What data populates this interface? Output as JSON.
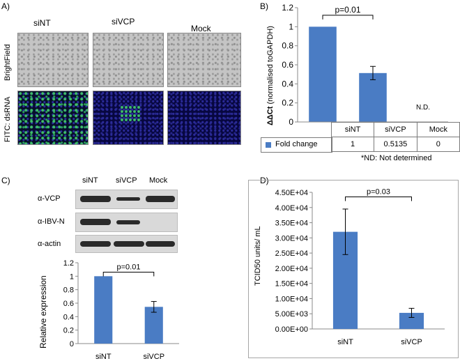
{
  "panel_a": {
    "letter": "A)",
    "columns": [
      "siNT",
      "siVCP",
      "Mock"
    ],
    "rows": [
      "BrightField",
      "FITC: dsRNA"
    ]
  },
  "panel_b": {
    "letter": "B)",
    "significance": "p=0.01",
    "nd_label": "N.D.",
    "table": {
      "headers": [
        "siNT",
        "siVCP",
        "Mock"
      ],
      "row_label": "Fold change",
      "values": [
        "1",
        "0.5135",
        "0"
      ]
    },
    "footnote": "*ND: Not determined",
    "ylabel_bold": "ΔΔCt",
    "ylabel_rest": " (normalised toGAPDH)"
  },
  "panel_c": {
    "letter": "C)",
    "lanes": [
      "siNT",
      "siVCP",
      "Mock"
    ],
    "blot_labels": [
      "α-VCP",
      "α-IBV-N",
      "α-actin"
    ],
    "significance": "p=0.01",
    "ylabel": "Relative expression"
  },
  "panel_d": {
    "letter": "D)",
    "significance": "p=0.03",
    "ylabel": "TCID50 units/ mL"
  },
  "chart_data": [
    {
      "id": "B",
      "type": "bar",
      "categories": [
        "siNT",
        "siVCP",
        "Mock"
      ],
      "series": [
        {
          "name": "Fold change",
          "values": [
            1,
            0.5135,
            0
          ],
          "errors": [
            0,
            0.07,
            0
          ]
        }
      ],
      "ylim": [
        0,
        1.2
      ],
      "yticks": [
        "0",
        "0.2",
        "0.4",
        "0.6",
        "0.8",
        "1",
        "1.2"
      ],
      "ylabel": "ΔΔCt (normalised toGAPDH)",
      "color": "#4a7cc4",
      "grid": false
    },
    {
      "id": "C",
      "type": "bar",
      "categories": [
        "siNT",
        "siVCP"
      ],
      "values": [
        1,
        0.545
      ],
      "errors": [
        0,
        0.08
      ],
      "ylim": [
        0,
        1.2
      ],
      "yticks": [
        "0",
        "0.2",
        "0.4",
        "0.6",
        "0.8",
        "1",
        "1.2"
      ],
      "ylabel": "Relative expression",
      "color": "#4a7cc4",
      "grid": false
    },
    {
      "id": "D",
      "type": "bar",
      "categories": [
        "siNT",
        "siVCP"
      ],
      "values": [
        32000,
        5300
      ],
      "errors": [
        7500,
        1500
      ],
      "ylim": [
        0,
        45000
      ],
      "yticks": [
        "0.00E+00",
        "5.00E+03",
        "1.00E+04",
        "1.50E+04",
        "2.00E+04",
        "2.50E+04",
        "3.00E+04",
        "3.50E+04",
        "4.00E+04",
        "4.50E+04"
      ],
      "ylabel": "TCID50 units/ mL",
      "color": "#4a7cc4",
      "grid": false
    }
  ]
}
